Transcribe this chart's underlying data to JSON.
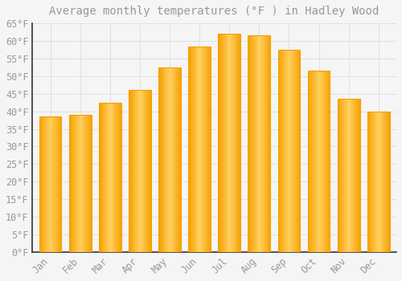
{
  "title": "Average monthly temperatures (°F ) in Hadley Wood",
  "months": [
    "Jan",
    "Feb",
    "Mar",
    "Apr",
    "May",
    "Jun",
    "Jul",
    "Aug",
    "Sep",
    "Oct",
    "Nov",
    "Dec"
  ],
  "values": [
    38.5,
    39.0,
    42.5,
    46.0,
    52.5,
    58.5,
    62.0,
    61.5,
    57.5,
    51.5,
    43.5,
    40.0
  ],
  "bar_color_center": "#FFD060",
  "bar_color_edge": "#F5A000",
  "background_color": "#F5F5F5",
  "grid_color": "#E0E0E0",
  "text_color": "#999999",
  "spine_color": "#333333",
  "ylim": [
    0,
    65
  ],
  "yticks": [
    0,
    5,
    10,
    15,
    20,
    25,
    30,
    35,
    40,
    45,
    50,
    55,
    60,
    65
  ],
  "title_fontsize": 10,
  "tick_fontsize": 8.5,
  "bar_width": 0.75
}
